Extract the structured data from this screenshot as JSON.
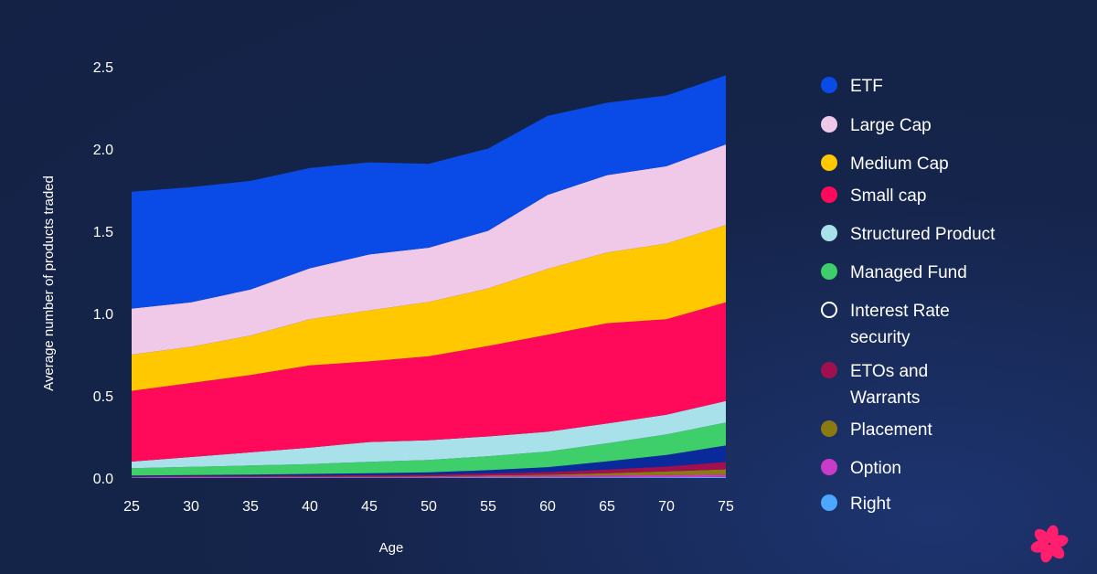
{
  "chart_data": {
    "type": "area",
    "stacked": true,
    "xlabel": "Age",
    "ylabel": "Average number of products traded",
    "xlim": [
      25,
      75
    ],
    "ylim": [
      0,
      2.5
    ],
    "x_ticks": [
      25,
      30,
      35,
      40,
      45,
      50,
      55,
      60,
      65,
      70,
      75
    ],
    "y_ticks": [
      "0.0",
      "0.5",
      "1.0",
      "1.5",
      "2.0",
      "2.5"
    ],
    "y_tick_values": [
      0,
      0.5,
      1.0,
      1.5,
      2.0,
      2.5
    ],
    "legend_position": "right",
    "x": [
      25,
      30,
      35,
      40,
      45,
      50,
      55,
      60,
      65,
      70,
      75
    ],
    "series": [
      {
        "name": "Right",
        "color": "#4da6ff",
        "values": [
          0.002,
          0.002,
          0.002,
          0.002,
          0.002,
          0.002,
          0.003,
          0.003,
          0.004,
          0.005,
          0.006
        ]
      },
      {
        "name": "Option",
        "color": "#c83cc8",
        "values": [
          0.003,
          0.004,
          0.004,
          0.005,
          0.005,
          0.006,
          0.008,
          0.009,
          0.011,
          0.013,
          0.015
        ]
      },
      {
        "name": "Placement",
        "color": "#8b7a12",
        "values": [
          0.001,
          0.002,
          0.002,
          0.002,
          0.003,
          0.003,
          0.005,
          0.008,
          0.014,
          0.022,
          0.032
        ]
      },
      {
        "name": "ETOs and\nWarrants",
        "color": "#a0104e",
        "values": [
          0.004,
          0.004,
          0.005,
          0.006,
          0.007,
          0.009,
          0.012,
          0.016,
          0.022,
          0.03,
          0.045
        ]
      },
      {
        "name": "Interest Rate\nsecurity",
        "color": "#0a2a9c",
        "values": [
          0.005,
          0.006,
          0.008,
          0.01,
          0.012,
          0.015,
          0.02,
          0.03,
          0.05,
          0.07,
          0.1
        ]
      },
      {
        "name": "Managed Fund",
        "color": "#3ecf6a",
        "values": [
          0.045,
          0.05,
          0.055,
          0.06,
          0.07,
          0.075,
          0.085,
          0.095,
          0.11,
          0.125,
          0.14
        ]
      },
      {
        "name": "Structured Product",
        "color": "#a9e1ea",
        "values": [
          0.04,
          0.06,
          0.08,
          0.1,
          0.12,
          0.12,
          0.12,
          0.12,
          0.12,
          0.12,
          0.13
        ]
      },
      {
        "name": "Small cap",
        "color": "#ff0a5a",
        "values": [
          0.43,
          0.45,
          0.47,
          0.5,
          0.49,
          0.51,
          0.55,
          0.59,
          0.61,
          0.58,
          0.6
        ]
      },
      {
        "name": "Medium Cap",
        "color": "#ffc800",
        "values": [
          0.22,
          0.22,
          0.24,
          0.28,
          0.31,
          0.33,
          0.35,
          0.4,
          0.43,
          0.46,
          0.47
        ]
      },
      {
        "name": "Large Cap",
        "color": "#f0c8e8",
        "values": [
          0.28,
          0.27,
          0.28,
          0.31,
          0.34,
          0.33,
          0.35,
          0.45,
          0.47,
          0.47,
          0.49
        ]
      },
      {
        "name": "ETF",
        "color": "#0a4ae6",
        "values": [
          0.71,
          0.7,
          0.66,
          0.61,
          0.56,
          0.51,
          0.5,
          0.48,
          0.44,
          0.43,
          0.42
        ]
      }
    ]
  },
  "legend": {
    "items": [
      {
        "label": "ETF",
        "color": "#0a4ae6",
        "hollow": false
      },
      {
        "label": "Large Cap",
        "color": "#f0c8e8",
        "hollow": false
      },
      {
        "label": "Medium Cap",
        "color": "#ffc800",
        "hollow": false
      },
      {
        "label": "Small cap",
        "color": "#ff0a5a",
        "hollow": false
      },
      {
        "label": "Structured Product",
        "color": "#a9e1ea",
        "hollow": false
      },
      {
        "label": "Managed Fund",
        "color": "#3ecf6a",
        "hollow": false
      },
      {
        "label": "Interest Rate\nsecurity",
        "color": "#0a2a9c",
        "hollow": true
      },
      {
        "label": "ETOs and\nWarrants",
        "color": "#a0104e",
        "hollow": false
      },
      {
        "label": "Placement",
        "color": "#8b7a12",
        "hollow": false
      },
      {
        "label": "Option",
        "color": "#c83cc8",
        "hollow": false
      },
      {
        "label": "Right",
        "color": "#4da6ff",
        "hollow": false
      }
    ]
  },
  "logo": {
    "color": "#ff1f6e"
  }
}
